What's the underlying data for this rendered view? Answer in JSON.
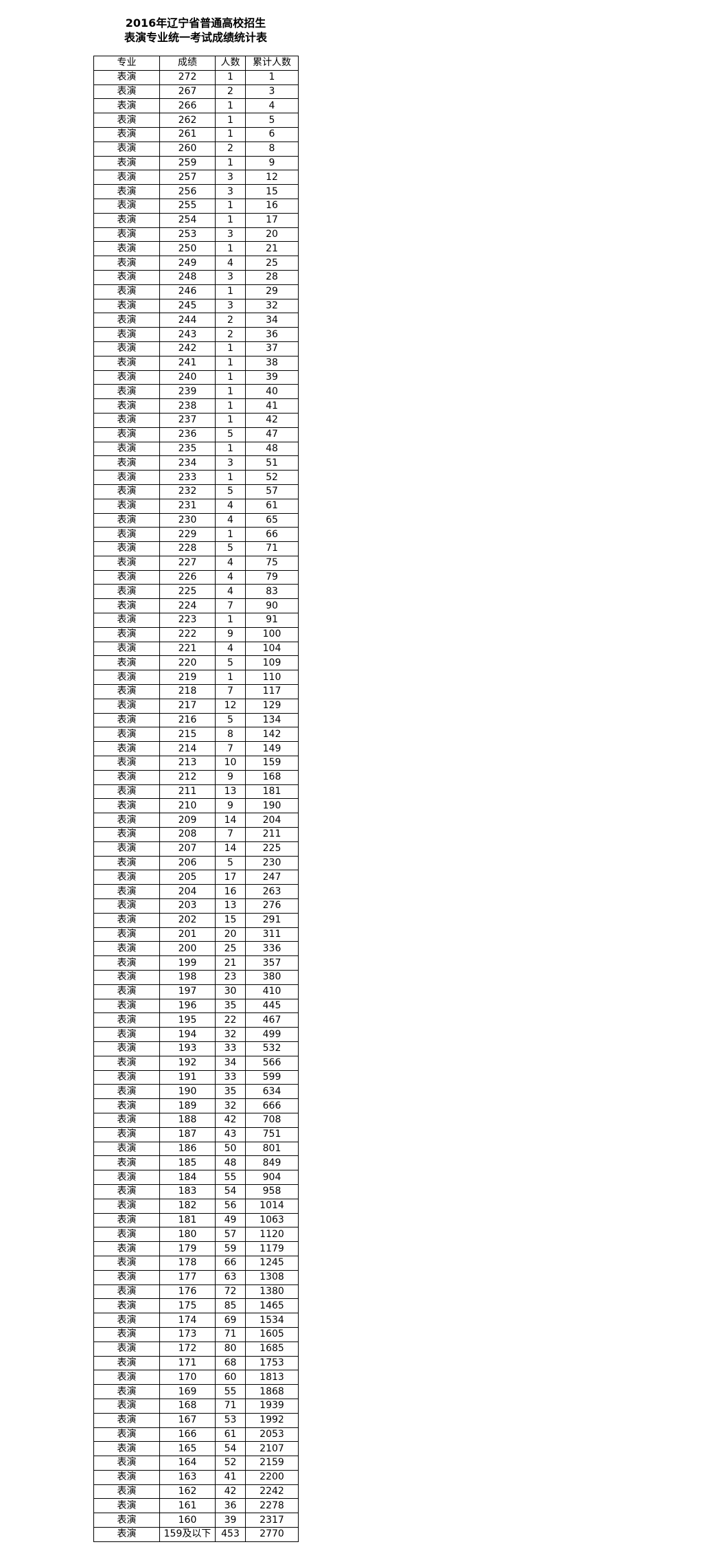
{
  "title_line1": "2016年辽宁省普通高校招生",
  "title_line2": "表演专业统一考试成绩统计表",
  "table": {
    "headers": [
      "专业",
      "成绩",
      "人数",
      "累计人数"
    ],
    "rows": [
      [
        "表演",
        "272",
        "1",
        "1"
      ],
      [
        "表演",
        "267",
        "2",
        "3"
      ],
      [
        "表演",
        "266",
        "1",
        "4"
      ],
      [
        "表演",
        "262",
        "1",
        "5"
      ],
      [
        "表演",
        "261",
        "1",
        "6"
      ],
      [
        "表演",
        "260",
        "2",
        "8"
      ],
      [
        "表演",
        "259",
        "1",
        "9"
      ],
      [
        "表演",
        "257",
        "3",
        "12"
      ],
      [
        "表演",
        "256",
        "3",
        "15"
      ],
      [
        "表演",
        "255",
        "1",
        "16"
      ],
      [
        "表演",
        "254",
        "1",
        "17"
      ],
      [
        "表演",
        "253",
        "3",
        "20"
      ],
      [
        "表演",
        "250",
        "1",
        "21"
      ],
      [
        "表演",
        "249",
        "4",
        "25"
      ],
      [
        "表演",
        "248",
        "3",
        "28"
      ],
      [
        "表演",
        "246",
        "1",
        "29"
      ],
      [
        "表演",
        "245",
        "3",
        "32"
      ],
      [
        "表演",
        "244",
        "2",
        "34"
      ],
      [
        "表演",
        "243",
        "2",
        "36"
      ],
      [
        "表演",
        "242",
        "1",
        "37"
      ],
      [
        "表演",
        "241",
        "1",
        "38"
      ],
      [
        "表演",
        "240",
        "1",
        "39"
      ],
      [
        "表演",
        "239",
        "1",
        "40"
      ],
      [
        "表演",
        "238",
        "1",
        "41"
      ],
      [
        "表演",
        "237",
        "1",
        "42"
      ],
      [
        "表演",
        "236",
        "5",
        "47"
      ],
      [
        "表演",
        "235",
        "1",
        "48"
      ],
      [
        "表演",
        "234",
        "3",
        "51"
      ],
      [
        "表演",
        "233",
        "1",
        "52"
      ],
      [
        "表演",
        "232",
        "5",
        "57"
      ],
      [
        "表演",
        "231",
        "4",
        "61"
      ],
      [
        "表演",
        "230",
        "4",
        "65"
      ],
      [
        "表演",
        "229",
        "1",
        "66"
      ],
      [
        "表演",
        "228",
        "5",
        "71"
      ],
      [
        "表演",
        "227",
        "4",
        "75"
      ],
      [
        "表演",
        "226",
        "4",
        "79"
      ],
      [
        "表演",
        "225",
        "4",
        "83"
      ],
      [
        "表演",
        "224",
        "7",
        "90"
      ],
      [
        "表演",
        "223",
        "1",
        "91"
      ],
      [
        "表演",
        "222",
        "9",
        "100"
      ],
      [
        "表演",
        "221",
        "4",
        "104"
      ],
      [
        "表演",
        "220",
        "5",
        "109"
      ],
      [
        "表演",
        "219",
        "1",
        "110"
      ],
      [
        "表演",
        "218",
        "7",
        "117"
      ],
      [
        "表演",
        "217",
        "12",
        "129"
      ],
      [
        "表演",
        "216",
        "5",
        "134"
      ],
      [
        "表演",
        "215",
        "8",
        "142"
      ],
      [
        "表演",
        "214",
        "7",
        "149"
      ],
      [
        "表演",
        "213",
        "10",
        "159"
      ],
      [
        "表演",
        "212",
        "9",
        "168"
      ],
      [
        "表演",
        "211",
        "13",
        "181"
      ],
      [
        "表演",
        "210",
        "9",
        "190"
      ],
      [
        "表演",
        "209",
        "14",
        "204"
      ],
      [
        "表演",
        "208",
        "7",
        "211"
      ],
      [
        "表演",
        "207",
        "14",
        "225"
      ],
      [
        "表演",
        "206",
        "5",
        "230"
      ],
      [
        "表演",
        "205",
        "17",
        "247"
      ],
      [
        "表演",
        "204",
        "16",
        "263"
      ],
      [
        "表演",
        "203",
        "13",
        "276"
      ],
      [
        "表演",
        "202",
        "15",
        "291"
      ],
      [
        "表演",
        "201",
        "20",
        "311"
      ],
      [
        "表演",
        "200",
        "25",
        "336"
      ],
      [
        "表演",
        "199",
        "21",
        "357"
      ],
      [
        "表演",
        "198",
        "23",
        "380"
      ],
      [
        "表演",
        "197",
        "30",
        "410"
      ],
      [
        "表演",
        "196",
        "35",
        "445"
      ],
      [
        "表演",
        "195",
        "22",
        "467"
      ],
      [
        "表演",
        "194",
        "32",
        "499"
      ],
      [
        "表演",
        "193",
        "33",
        "532"
      ],
      [
        "表演",
        "192",
        "34",
        "566"
      ],
      [
        "表演",
        "191",
        "33",
        "599"
      ],
      [
        "表演",
        "190",
        "35",
        "634"
      ],
      [
        "表演",
        "189",
        "32",
        "666"
      ],
      [
        "表演",
        "188",
        "42",
        "708"
      ],
      [
        "表演",
        "187",
        "43",
        "751"
      ],
      [
        "表演",
        "186",
        "50",
        "801"
      ],
      [
        "表演",
        "185",
        "48",
        "849"
      ],
      [
        "表演",
        "184",
        "55",
        "904"
      ],
      [
        "表演",
        "183",
        "54",
        "958"
      ],
      [
        "表演",
        "182",
        "56",
        "1014"
      ],
      [
        "表演",
        "181",
        "49",
        "1063"
      ],
      [
        "表演",
        "180",
        "57",
        "1120"
      ],
      [
        "表演",
        "179",
        "59",
        "1179"
      ],
      [
        "表演",
        "178",
        "66",
        "1245"
      ],
      [
        "表演",
        "177",
        "63",
        "1308"
      ],
      [
        "表演",
        "176",
        "72",
        "1380"
      ],
      [
        "表演",
        "175",
        "85",
        "1465"
      ],
      [
        "表演",
        "174",
        "69",
        "1534"
      ],
      [
        "表演",
        "173",
        "71",
        "1605"
      ],
      [
        "表演",
        "172",
        "80",
        "1685"
      ],
      [
        "表演",
        "171",
        "68",
        "1753"
      ],
      [
        "表演",
        "170",
        "60",
        "1813"
      ],
      [
        "表演",
        "169",
        "55",
        "1868"
      ],
      [
        "表演",
        "168",
        "71",
        "1939"
      ],
      [
        "表演",
        "167",
        "53",
        "1992"
      ],
      [
        "表演",
        "166",
        "61",
        "2053"
      ],
      [
        "表演",
        "165",
        "54",
        "2107"
      ],
      [
        "表演",
        "164",
        "52",
        "2159"
      ],
      [
        "表演",
        "163",
        "41",
        "2200"
      ],
      [
        "表演",
        "162",
        "42",
        "2242"
      ],
      [
        "表演",
        "161",
        "36",
        "2278"
      ],
      [
        "表演",
        "160",
        "39",
        "2317"
      ],
      [
        "表演",
        "159及以下",
        "453",
        "2770"
      ]
    ]
  }
}
